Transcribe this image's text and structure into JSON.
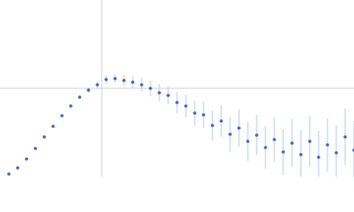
{
  "chart_data": {
    "type": "scatter",
    "xlim": [
      0,
      0.4
    ],
    "ylim": [
      0,
      2
    ],
    "xgrid": [
      0.115
    ],
    "ygrid": [
      1
    ],
    "series": [
      {
        "color": "#3b66c2",
        "error_color": "#b9c9ea",
        "x": [
          0.01,
          0.02,
          0.03,
          0.04,
          0.05,
          0.06,
          0.07,
          0.08,
          0.09,
          0.1,
          0.11,
          0.12,
          0.13,
          0.14,
          0.15,
          0.16,
          0.17,
          0.18,
          0.19,
          0.2,
          0.21,
          0.22,
          0.23,
          0.24,
          0.25,
          0.26,
          0.27,
          0.28,
          0.29,
          0.3,
          0.31,
          0.32,
          0.33,
          0.34,
          0.35,
          0.36,
          0.37,
          0.38,
          0.39,
          0.4
        ],
        "values": [
          0.03,
          0.1,
          0.2,
          0.32,
          0.45,
          0.57,
          0.69,
          0.8,
          0.9,
          0.98,
          1.04,
          1.1,
          1.11,
          1.09,
          1.07,
          1.04,
          1.0,
          0.95,
          0.92,
          0.84,
          0.8,
          0.72,
          0.7,
          0.58,
          0.63,
          0.48,
          0.55,
          0.4,
          0.47,
          0.33,
          0.42,
          0.28,
          0.38,
          0.25,
          0.4,
          0.22,
          0.36,
          0.27,
          0.45,
          0.3
        ],
        "errors": [
          0.005,
          0.005,
          0.005,
          0.006,
          0.008,
          0.01,
          0.01,
          0.015,
          0.02,
          0.03,
          0.04,
          0.05,
          0.05,
          0.06,
          0.07,
          0.08,
          0.09,
          0.1,
          0.1,
          0.12,
          0.13,
          0.14,
          0.15,
          0.17,
          0.18,
          0.2,
          0.21,
          0.22,
          0.23,
          0.24,
          0.25,
          0.26,
          0.27,
          0.28,
          0.29,
          0.3,
          0.3,
          0.31,
          0.32,
          0.33
        ]
      }
    ]
  }
}
